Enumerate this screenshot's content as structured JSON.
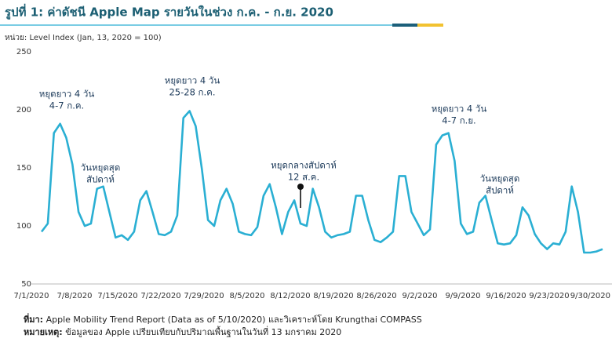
{
  "chart_data": {
    "type": "line",
    "title": "รูปที่ 1: ค่าดัชนี Apple Map รายวันในช่วง ก.ค. - ก.ย. 2020",
    "subtitle": "หน่วย: Level Index (Jan, 13, 2020 = 100)",
    "source_label": "ที่มา:",
    "source": "Apple Mobility Trend Report (Data as of 5/10/2020) และวิเคราะห์โดย Krungthai COMPASS",
    "note_label": "หมายเหตุ:",
    "note": "ข้อมูลของ Apple เปรียบเทียบกับปริมาณพื้นฐานในวันที่ 13 มกราคม 2020",
    "annotations": [
      [
        "หยุดยาว 4 วัน",
        "4-7 ก.ค."
      ],
      [
        "วันหยุดสุด",
        "สัปดาห์"
      ],
      [
        "หยุดยาว 4 วัน",
        "25-28 ก.ค."
      ],
      [
        "หยุดกลางสัปดาห์",
        "12 ส.ค."
      ],
      [
        "หยุดยาว 4 วัน",
        "4-7 ก.ย."
      ],
      [
        "วันหยุดสุด",
        "สัปดาห์"
      ]
    ],
    "x": [
      "7/1/2020",
      "7/2/2020",
      "7/3/2020",
      "7/4/2020",
      "7/5/2020",
      "7/6/2020",
      "7/7/2020",
      "7/8/2020",
      "7/9/2020",
      "7/10/2020",
      "7/11/2020",
      "7/12/2020",
      "7/13/2020",
      "7/14/2020",
      "7/15/2020",
      "7/16/2020",
      "7/17/2020",
      "7/18/2020",
      "7/19/2020",
      "7/20/2020",
      "7/21/2020",
      "7/22/2020",
      "7/23/2020",
      "7/24/2020",
      "7/25/2020",
      "7/26/2020",
      "7/27/2020",
      "7/28/2020",
      "7/29/2020",
      "7/30/2020",
      "7/31/2020",
      "8/1/2020",
      "8/2/2020",
      "8/3/2020",
      "8/4/2020",
      "8/5/2020",
      "8/6/2020",
      "8/7/2020",
      "8/8/2020",
      "8/9/2020",
      "8/10/2020",
      "8/11/2020",
      "8/12/2020",
      "8/13/2020",
      "8/14/2020",
      "8/15/2020",
      "8/16/2020",
      "8/17/2020",
      "8/18/2020",
      "8/19/2020",
      "8/20/2020",
      "8/21/2020",
      "8/22/2020",
      "8/23/2020",
      "8/24/2020",
      "8/25/2020",
      "8/26/2020",
      "8/27/2020",
      "8/28/2020",
      "8/29/2020",
      "8/30/2020",
      "8/31/2020",
      "9/1/2020",
      "9/2/2020",
      "9/3/2020",
      "9/4/2020",
      "9/5/2020",
      "9/6/2020",
      "9/7/2020",
      "9/8/2020",
      "9/9/2020",
      "9/10/2020",
      "9/11/2020",
      "9/12/2020",
      "9/13/2020",
      "9/14/2020",
      "9/15/2020",
      "9/16/2020",
      "9/17/2020",
      "9/18/2020",
      "9/19/2020",
      "9/20/2020",
      "9/21/2020",
      "9/22/2020",
      "9/23/2020",
      "9/24/2020",
      "9/25/2020",
      "9/26/2020",
      "9/27/2020",
      "9/28/2020",
      "9/29/2020",
      "9/30/2020"
    ],
    "values": [
      95,
      102,
      180,
      188,
      176,
      153,
      112,
      100,
      102,
      132,
      134,
      112,
      90,
      92,
      88,
      95,
      122,
      130,
      112,
      93,
      92,
      95,
      109,
      193,
      199,
      186,
      149,
      105,
      100,
      122,
      132,
      119,
      95,
      93,
      92,
      99,
      126,
      136,
      116,
      93,
      112,
      122,
      102,
      100,
      132,
      116,
      95,
      90,
      92,
      93,
      95,
      126,
      126,
      105,
      88,
      86,
      90,
      95,
      143,
      143,
      112,
      102,
      92,
      97,
      170,
      178,
      180,
      156,
      102,
      93,
      95,
      120,
      126,
      105,
      85,
      84,
      85,
      92,
      116,
      109,
      93,
      85,
      80,
      85,
      84,
      95,
      134,
      112,
      77,
      77,
      78,
      80
    ],
    "color": "#2aafd3",
    "xticks": [
      "7/1/2020",
      "7/8/2020",
      "7/15/2020",
      "7/22/2020",
      "7/29/2020",
      "8/5/2020",
      "8/12/2020",
      "8/19/2020",
      "8/26/2020",
      "9/2/2020",
      "9/9/2020",
      "9/16/2020",
      "9/23/2020",
      "9/30/2020"
    ],
    "ylim": [
      50,
      250
    ],
    "yticks": [
      50,
      100,
      150,
      200,
      250
    ],
    "grid": false
  }
}
